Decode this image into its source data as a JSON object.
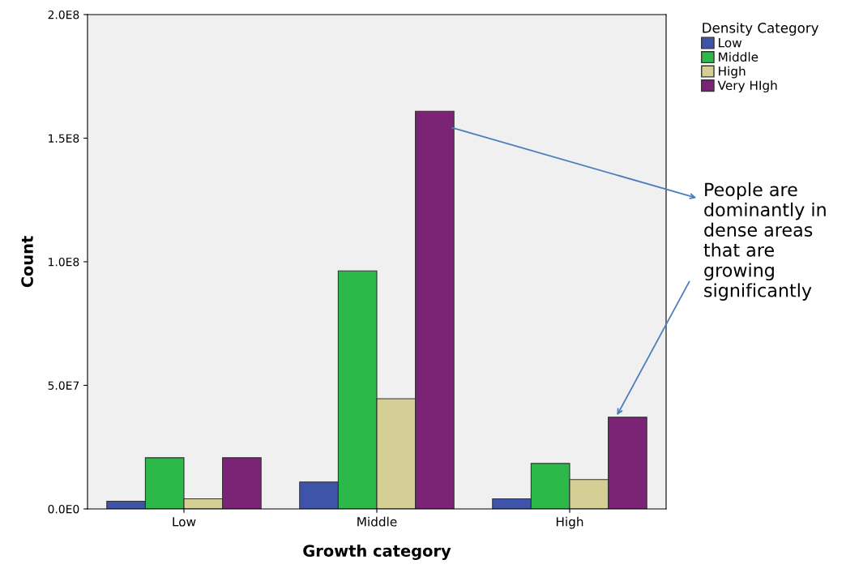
{
  "chart_data": {
    "type": "bar",
    "xlabel": "Growth category",
    "ylabel": "Count",
    "legend_title": "Density Category",
    "categories": [
      "Low",
      "Middle",
      "High"
    ],
    "series": [
      {
        "name": "Low",
        "color": "#3e54a8",
        "values": [
          3100000,
          10900000,
          4100000
        ]
      },
      {
        "name": "Middle",
        "color": "#2db84a",
        "values": [
          20700000,
          96300000,
          18400000
        ]
      },
      {
        "name": "High",
        "color": "#d5cf95",
        "values": [
          4100000,
          44600000,
          11900000
        ]
      },
      {
        "name": "Very HIgh",
        "color": "#7b2375",
        "values": [
          20700000,
          160900000,
          37100000
        ]
      }
    ],
    "ylim": [
      0,
      200000000
    ],
    "yticks": [
      {
        "value": 0,
        "label": "0.0E0"
      },
      {
        "value": 50000000,
        "label": "5.0E7"
      },
      {
        "value": 100000000,
        "label": "1.0E8"
      },
      {
        "value": 150000000,
        "label": "1.5E8"
      },
      {
        "value": 200000000,
        "label": "2.0E8"
      }
    ],
    "grid": false,
    "legend": "top right",
    "annotations": [
      "People are dominantly in dense areas that are growing significantly"
    ]
  }
}
